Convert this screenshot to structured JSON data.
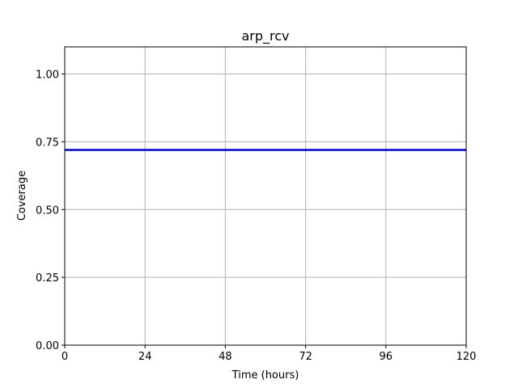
{
  "chart_data": {
    "type": "line",
    "title": "arp_rcv",
    "xlabel": "Time (hours)",
    "ylabel": "Coverage",
    "xlim": [
      0,
      120
    ],
    "ylim": [
      0,
      1.1
    ],
    "xticks": [
      0,
      24,
      48,
      72,
      96,
      120
    ],
    "xtick_labels": [
      "0",
      "24",
      "48",
      "72",
      "96",
      "120"
    ],
    "yticks": [
      0,
      0.25,
      0.5,
      0.75,
      1.0
    ],
    "ytick_labels": [
      "0.00",
      "0.25",
      "0.50",
      "0.75",
      "1.00"
    ],
    "grid": true,
    "series": [
      {
        "color": "#0000cc",
        "x": [
          0,
          120
        ],
        "y": [
          0.72,
          0.72
        ]
      }
    ]
  }
}
